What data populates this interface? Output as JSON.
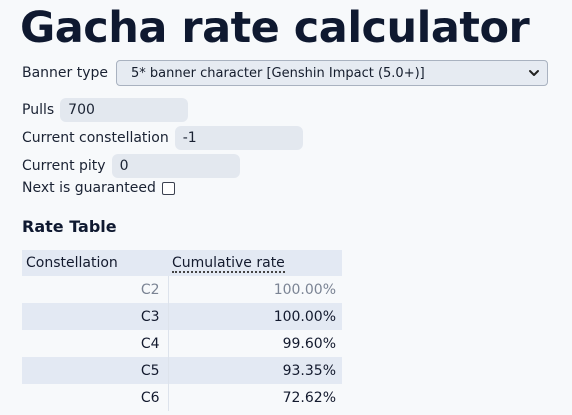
{
  "title": "Gacha rate calculator",
  "banner": {
    "label": "Banner type",
    "selected": "5* banner character [Genshin Impact (5.0+)]"
  },
  "fields": {
    "pulls": {
      "label": "Pulls",
      "value": "700"
    },
    "constellation": {
      "label": "Current constellation",
      "value": "-1"
    },
    "pity": {
      "label": "Current pity",
      "value": "0"
    },
    "guaranteed": {
      "label": "Next is guaranteed",
      "checked": false
    }
  },
  "rate_table": {
    "heading": "Rate Table",
    "columns": [
      "Constellation",
      "Cumulative rate"
    ],
    "rows": [
      [
        "C2",
        "100.00%"
      ],
      [
        "C3",
        "100.00%"
      ],
      [
        "C4",
        "99.60%"
      ],
      [
        "C5",
        "93.35%"
      ],
      [
        "C6",
        "72.62%"
      ]
    ]
  }
}
